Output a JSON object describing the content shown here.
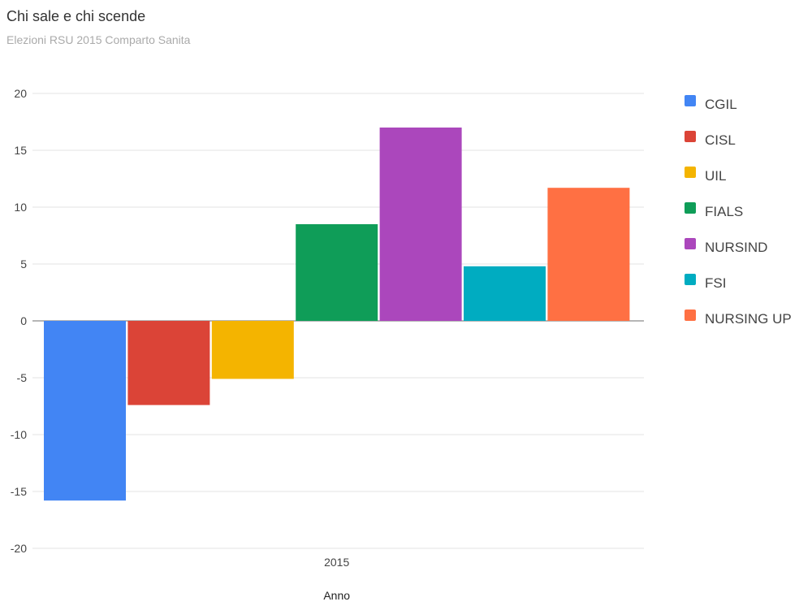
{
  "title": "Chi sale e chi scende",
  "subtitle": "Elezioni RSU 2015 Comparto Sanita",
  "chart_data": {
    "type": "bar",
    "categories": [
      "2015"
    ],
    "xlabel": "Anno",
    "ylabel": "",
    "ylim": [
      -20,
      20
    ],
    "yticks": [
      20,
      15,
      10,
      5,
      0,
      -5,
      -10,
      -15,
      -20
    ],
    "grid": true,
    "legend": "right",
    "series": [
      {
        "name": "CGIL",
        "values": [
          -15.8
        ],
        "color": "#4285f4"
      },
      {
        "name": "CISL",
        "values": [
          -7.4
        ],
        "color": "#db4437"
      },
      {
        "name": "UIL",
        "values": [
          -5.1
        ],
        "color": "#f4b400"
      },
      {
        "name": "FIALS",
        "values": [
          8.5
        ],
        "color": "#0f9d58"
      },
      {
        "name": "NURSIND",
        "values": [
          17.0
        ],
        "color": "#ab47bc"
      },
      {
        "name": "FSI",
        "values": [
          4.8
        ],
        "color": "#00acc1"
      },
      {
        "name": "NURSING UP",
        "values": [
          11.7
        ],
        "color": "#ff7043"
      }
    ]
  }
}
